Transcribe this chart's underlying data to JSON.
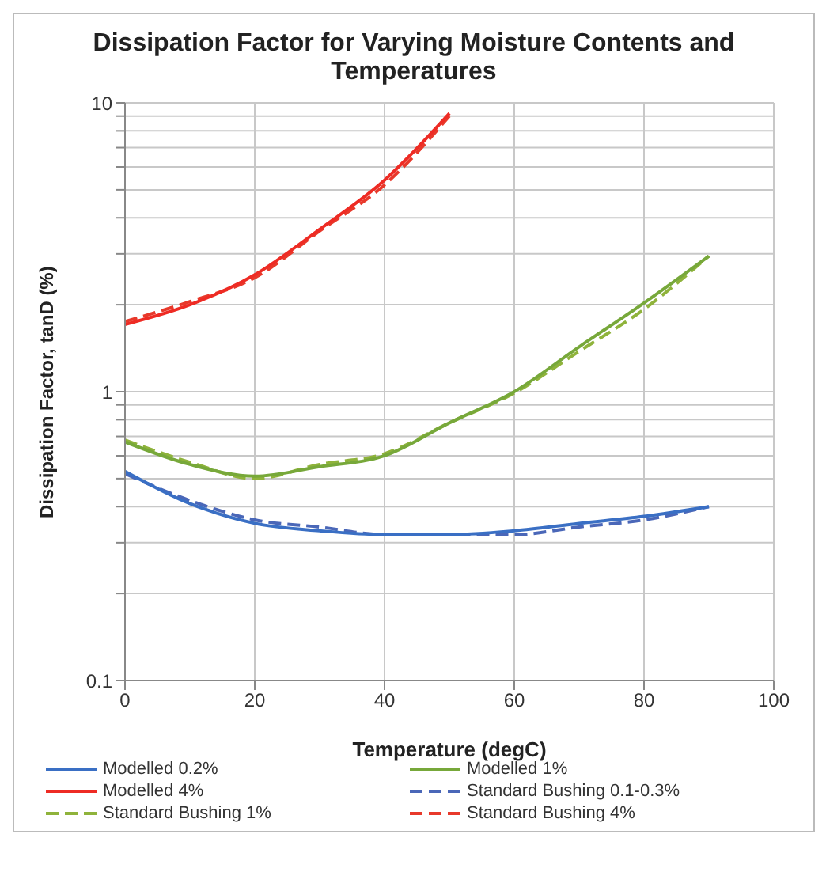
{
  "chart_data": {
    "type": "line",
    "title": "Dissipation Factor for Varying Moisture Contents and Temperatures",
    "xlabel": "Temperature (degC)",
    "ylabel": "Dissipation Factor, tanD (%)",
    "log": "y",
    "grid": true,
    "legend": "bottom",
    "xlim": [
      0,
      100
    ],
    "xticks": [
      0,
      20,
      40,
      60,
      80,
      100
    ],
    "ylim": [
      0.1,
      10
    ],
    "yticks": [
      0.1,
      {
        "value": 0.2,
        "label": null
      },
      {
        "value": 0.3,
        "label": null
      },
      {
        "value": 0.4,
        "label": null
      },
      {
        "value": 0.5,
        "label": null
      },
      {
        "value": 0.6,
        "label": null
      },
      {
        "value": 0.7,
        "label": null
      },
      {
        "value": 0.8,
        "label": null
      },
      {
        "value": 0.9,
        "label": null
      },
      1,
      {
        "value": 2,
        "label": null
      },
      {
        "value": 3,
        "label": null
      },
      {
        "value": 4,
        "label": null
      },
      {
        "value": 5,
        "label": null
      },
      {
        "value": 6,
        "label": null
      },
      {
        "value": 7,
        "label": null
      },
      {
        "value": 8,
        "label": null
      },
      {
        "value": 9,
        "label": null
      },
      10
    ],
    "marker": "none",
    "series": [
      {
        "name": "Standard Bushing 0.1-0.3%",
        "color": "#4a67b8",
        "line_style": "dashed",
        "x": [
          0,
          10,
          20,
          30,
          40,
          50,
          60,
          70,
          80,
          90
        ],
        "values": [
          0.52,
          0.42,
          0.36,
          0.34,
          0.32,
          0.32,
          0.32,
          0.34,
          0.36,
          0.4
        ]
      },
      {
        "name": "Standard Bushing 1%",
        "color": "#8fb33b",
        "line_style": "dashed",
        "x": [
          0,
          10,
          20,
          30,
          40,
          50,
          60,
          70,
          80,
          90
        ],
        "values": [
          0.68,
          0.57,
          0.5,
          0.56,
          0.61,
          0.78,
          0.99,
          1.38,
          1.93,
          2.95
        ]
      },
      {
        "name": "Standard Bushing 4%",
        "color": "#e8392b",
        "line_style": "dashed",
        "x": [
          0,
          10,
          20,
          30,
          40,
          50
        ],
        "values": [
          1.75,
          2.05,
          2.48,
          3.6,
          5.2,
          9.0
        ]
      },
      {
        "name": "Modelled 0.2%",
        "color": "#3a6fc4",
        "line_style": "solid",
        "x": [
          0,
          10,
          20,
          30,
          40,
          50,
          60,
          70,
          80,
          90
        ],
        "values": [
          0.53,
          0.41,
          0.35,
          0.33,
          0.32,
          0.32,
          0.33,
          0.35,
          0.37,
          0.4
        ]
      },
      {
        "name": "Modelled 1%",
        "color": "#77a83a",
        "line_style": "solid",
        "x": [
          0,
          10,
          20,
          30,
          40,
          50,
          60,
          70,
          80,
          90
        ],
        "values": [
          0.67,
          0.56,
          0.51,
          0.55,
          0.6,
          0.78,
          1.0,
          1.43,
          2.03,
          2.95
        ]
      },
      {
        "name": "Modelled 4%",
        "color": "#ee2b24",
        "line_style": "solid",
        "x": [
          0,
          10,
          20,
          30,
          40,
          50
        ],
        "values": [
          1.71,
          2.0,
          2.54,
          3.65,
          5.4,
          9.2
        ]
      }
    ]
  }
}
